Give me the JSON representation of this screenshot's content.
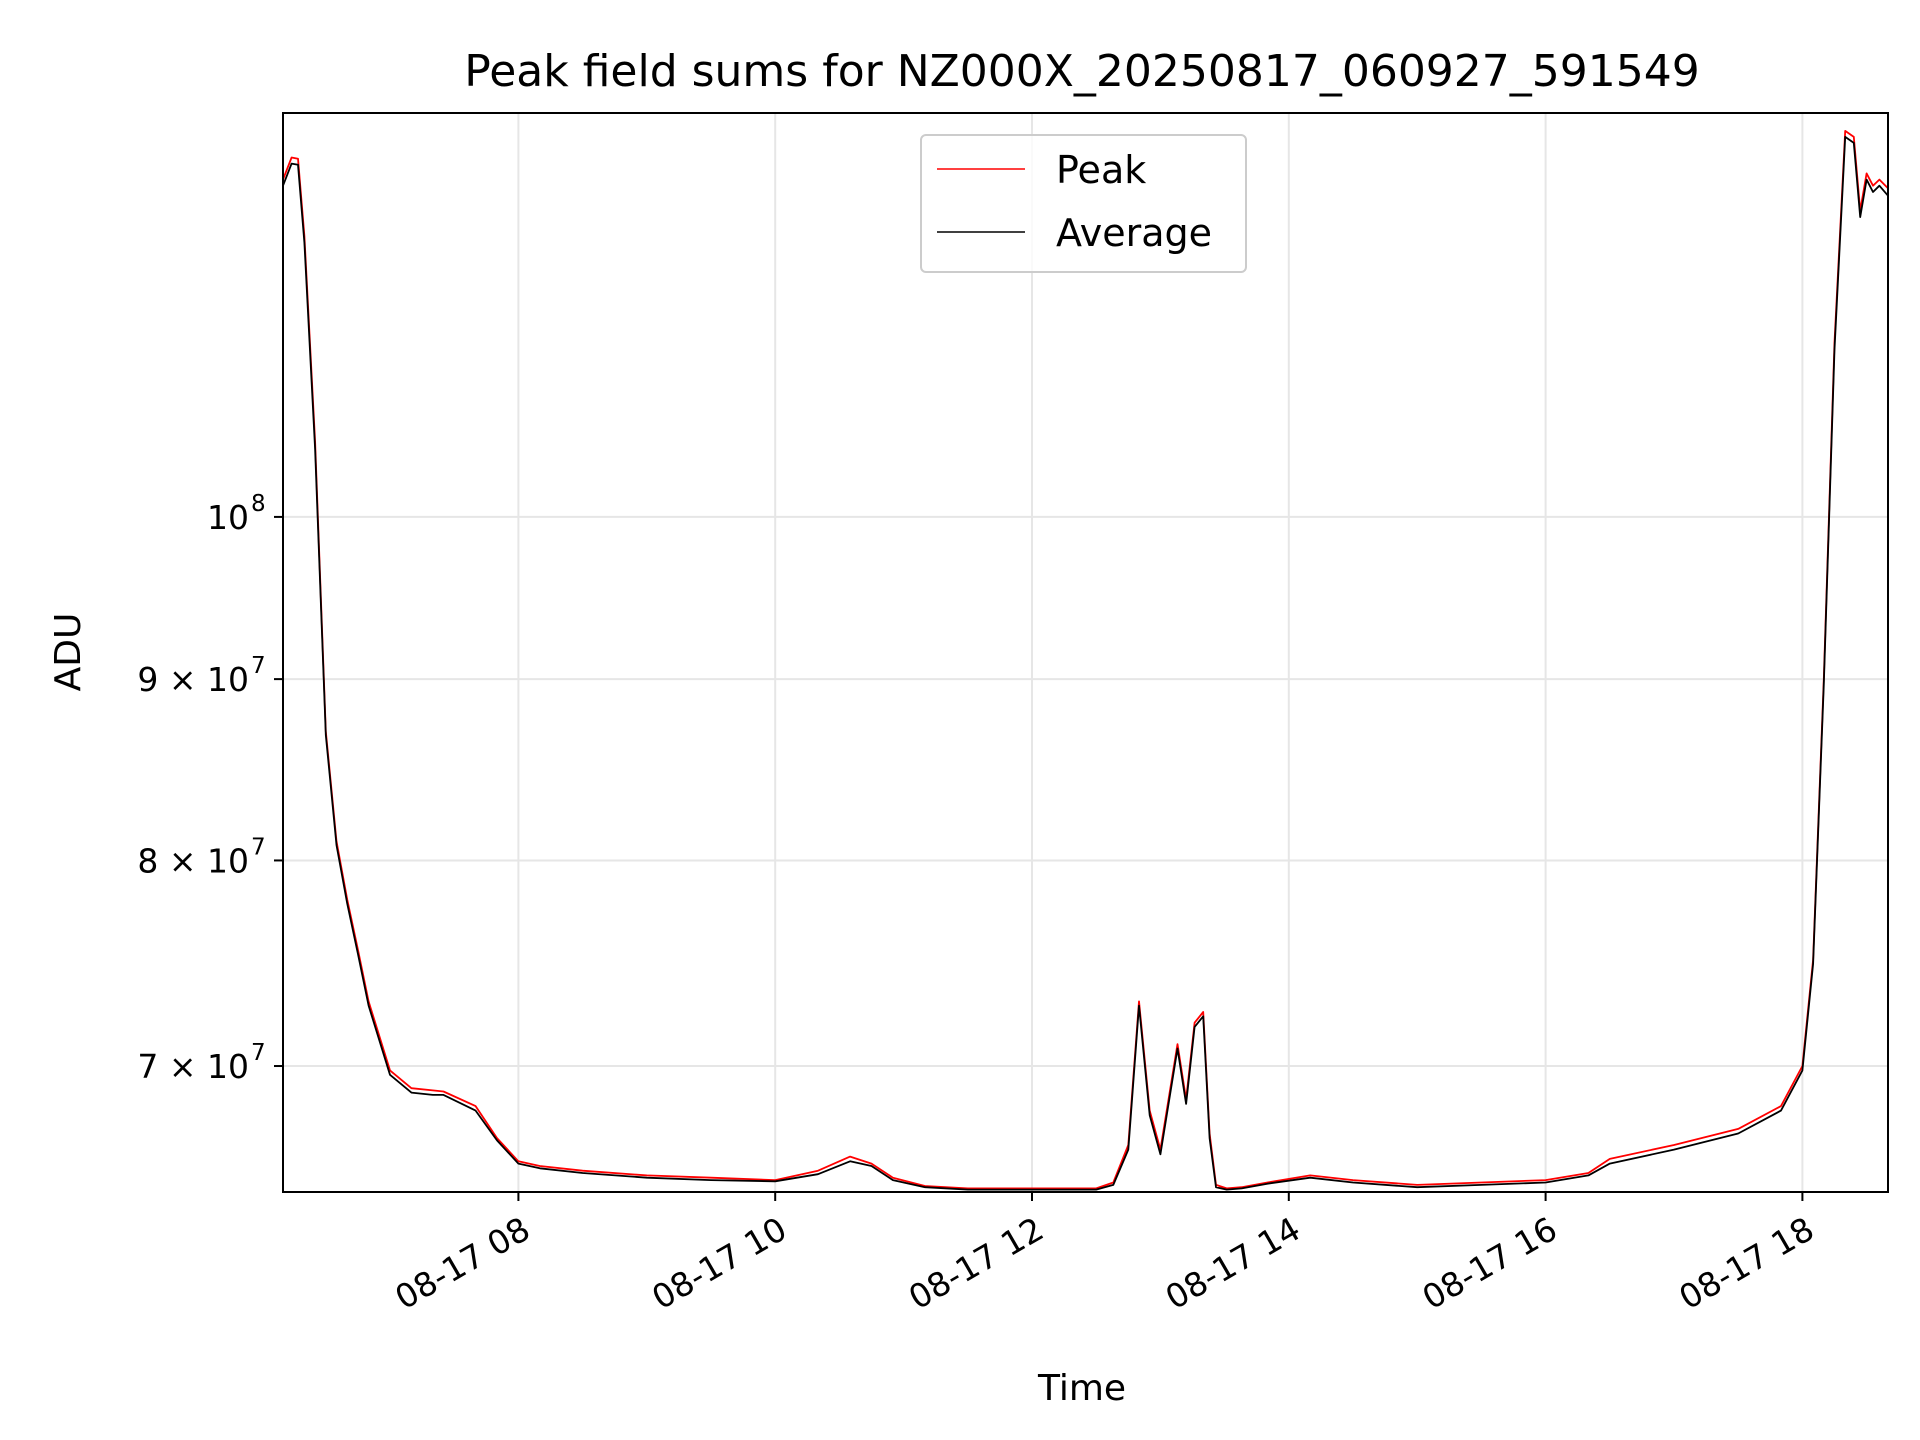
{
  "chart_data": {
    "type": "line",
    "title": "Peak field sums for NZ000X_20250817_060927_591549",
    "xlabel": "Time",
    "ylabel": "ADU",
    "y_scale": "log",
    "grid": true,
    "legend_position": "top-center",
    "xlim": [
      "2025-08-17 06:10",
      "2025-08-17 18:40"
    ],
    "ylim": [
      64500000,
      130000000
    ],
    "x_ticks": [
      {
        "value": "2025-08-17 08:00",
        "label": "08-17 08"
      },
      {
        "value": "2025-08-17 10:00",
        "label": "08-17 10"
      },
      {
        "value": "2025-08-17 12:00",
        "label": "08-17 12"
      },
      {
        "value": "2025-08-17 14:00",
        "label": "08-17 14"
      },
      {
        "value": "2025-08-17 16:00",
        "label": "08-17 16"
      },
      {
        "value": "2025-08-17 18:00",
        "label": "08-17 18"
      }
    ],
    "y_ticks": [
      {
        "value": 70000000,
        "base": "7 × 10",
        "exp": "7"
      },
      {
        "value": 80000000,
        "base": "8 × 10",
        "exp": "7"
      },
      {
        "value": 90000000,
        "base": "9 × 10",
        "exp": "7"
      },
      {
        "value": 100000000,
        "base": "10",
        "exp": "8"
      }
    ],
    "series": [
      {
        "name": "Peak",
        "color": "#ff0000",
        "x": [
          "2025-08-17 06:10",
          "2025-08-17 06:14",
          "2025-08-17 06:17",
          "2025-08-17 06:20",
          "2025-08-17 06:25",
          "2025-08-17 06:30",
          "2025-08-17 06:35",
          "2025-08-17 06:40",
          "2025-08-17 06:45",
          "2025-08-17 06:50",
          "2025-08-17 07:00",
          "2025-08-17 07:10",
          "2025-08-17 07:20",
          "2025-08-17 07:25",
          "2025-08-17 07:40",
          "2025-08-17 07:50",
          "2025-08-17 08:00",
          "2025-08-17 08:10",
          "2025-08-17 08:30",
          "2025-08-17 09:00",
          "2025-08-17 09:30",
          "2025-08-17 10:00",
          "2025-08-17 10:20",
          "2025-08-17 10:35",
          "2025-08-17 10:45",
          "2025-08-17 10:55",
          "2025-08-17 11:10",
          "2025-08-17 11:30",
          "2025-08-17 12:00",
          "2025-08-17 12:30",
          "2025-08-17 12:38",
          "2025-08-17 12:45",
          "2025-08-17 12:50",
          "2025-08-17 12:55",
          "2025-08-17 13:00",
          "2025-08-17 13:08",
          "2025-08-17 13:12",
          "2025-08-17 13:16",
          "2025-08-17 13:20",
          "2025-08-17 13:23",
          "2025-08-17 13:26",
          "2025-08-17 13:31",
          "2025-08-17 13:38",
          "2025-08-17 13:50",
          "2025-08-17 14:10",
          "2025-08-17 14:30",
          "2025-08-17 15:00",
          "2025-08-17 15:30",
          "2025-08-17 16:00",
          "2025-08-17 16:20",
          "2025-08-17 16:30",
          "2025-08-17 17:00",
          "2025-08-17 17:30",
          "2025-08-17 17:50",
          "2025-08-17 18:00",
          "2025-08-17 18:05",
          "2025-08-17 18:10",
          "2025-08-17 18:15",
          "2025-08-17 18:20",
          "2025-08-17 18:24",
          "2025-08-17 18:27",
          "2025-08-17 18:30",
          "2025-08-17 18:33",
          "2025-08-17 18:36",
          "2025-08-17 18:40"
        ],
        "y": [
          124500000,
          126300000,
          126200000,
          120000000,
          105000000,
          87000000,
          81000000,
          78000000,
          75500000,
          73000000,
          69800000,
          69000000,
          68900000,
          68850000,
          68200000,
          66800000,
          65800000,
          65600000,
          65400000,
          65200000,
          65100000,
          65000000,
          65400000,
          66000000,
          65700000,
          65100000,
          64750000,
          64650000,
          64650000,
          64650000,
          64900000,
          66500000,
          73000000,
          68000000,
          66300000,
          71000000,
          68500000,
          72000000,
          72500000,
          67000000,
          64800000,
          64650000,
          64700000,
          64900000,
          65200000,
          65000000,
          64800000,
          64900000,
          65000000,
          65300000,
          65900000,
          66500000,
          67200000,
          68200000,
          70000000,
          75000000,
          90000000,
          112000000,
          128500000,
          128000000,
          122000000,
          125000000,
          124000000,
          124500000,
          123800000
        ]
      },
      {
        "name": "Average",
        "color": "#000000",
        "x": [
          "2025-08-17 06:10",
          "2025-08-17 06:14",
          "2025-08-17 06:17",
          "2025-08-17 06:20",
          "2025-08-17 06:25",
          "2025-08-17 06:30",
          "2025-08-17 06:35",
          "2025-08-17 06:40",
          "2025-08-17 06:45",
          "2025-08-17 06:50",
          "2025-08-17 07:00",
          "2025-08-17 07:10",
          "2025-08-17 07:20",
          "2025-08-17 07:25",
          "2025-08-17 07:40",
          "2025-08-17 07:50",
          "2025-08-17 08:00",
          "2025-08-17 08:10",
          "2025-08-17 08:30",
          "2025-08-17 09:00",
          "2025-08-17 09:30",
          "2025-08-17 10:00",
          "2025-08-17 10:20",
          "2025-08-17 10:35",
          "2025-08-17 10:45",
          "2025-08-17 10:55",
          "2025-08-17 11:10",
          "2025-08-17 11:30",
          "2025-08-17 12:00",
          "2025-08-17 12:30",
          "2025-08-17 12:38",
          "2025-08-17 12:45",
          "2025-08-17 12:50",
          "2025-08-17 12:55",
          "2025-08-17 13:00",
          "2025-08-17 13:08",
          "2025-08-17 13:12",
          "2025-08-17 13:16",
          "2025-08-17 13:20",
          "2025-08-17 13:23",
          "2025-08-17 13:26",
          "2025-08-17 13:31",
          "2025-08-17 13:38",
          "2025-08-17 13:50",
          "2025-08-17 14:10",
          "2025-08-17 14:30",
          "2025-08-17 15:00",
          "2025-08-17 15:30",
          "2025-08-17 16:00",
          "2025-08-17 16:20",
          "2025-08-17 16:30",
          "2025-08-17 17:00",
          "2025-08-17 17:30",
          "2025-08-17 17:50",
          "2025-08-17 18:00",
          "2025-08-17 18:05",
          "2025-08-17 18:10",
          "2025-08-17 18:15",
          "2025-08-17 18:20",
          "2025-08-17 18:24",
          "2025-08-17 18:27",
          "2025-08-17 18:30",
          "2025-08-17 18:33",
          "2025-08-17 18:36",
          "2025-08-17 18:40"
        ],
        "y": [
          124000000,
          125800000,
          125700000,
          119500000,
          104500000,
          86800000,
          80800000,
          77800000,
          75300000,
          72800000,
          69600000,
          68800000,
          68700000,
          68700000,
          68000000,
          66700000,
          65700000,
          65500000,
          65300000,
          65100000,
          65000000,
          64950000,
          65250000,
          65800000,
          65600000,
          65000000,
          64700000,
          64600000,
          64600000,
          64600000,
          64800000,
          66300000,
          72800000,
          67800000,
          66100000,
          70800000,
          68300000,
          71800000,
          72300000,
          66800000,
          64700000,
          64600000,
          64650000,
          64850000,
          65100000,
          64900000,
          64700000,
          64800000,
          64900000,
          65200000,
          65700000,
          66300000,
          67000000,
          68000000,
          69800000,
          74800000,
          89700000,
          111500000,
          128000000,
          127500000,
          121500000,
          124500000,
          123500000,
          124000000,
          123200000
        ]
      }
    ]
  }
}
